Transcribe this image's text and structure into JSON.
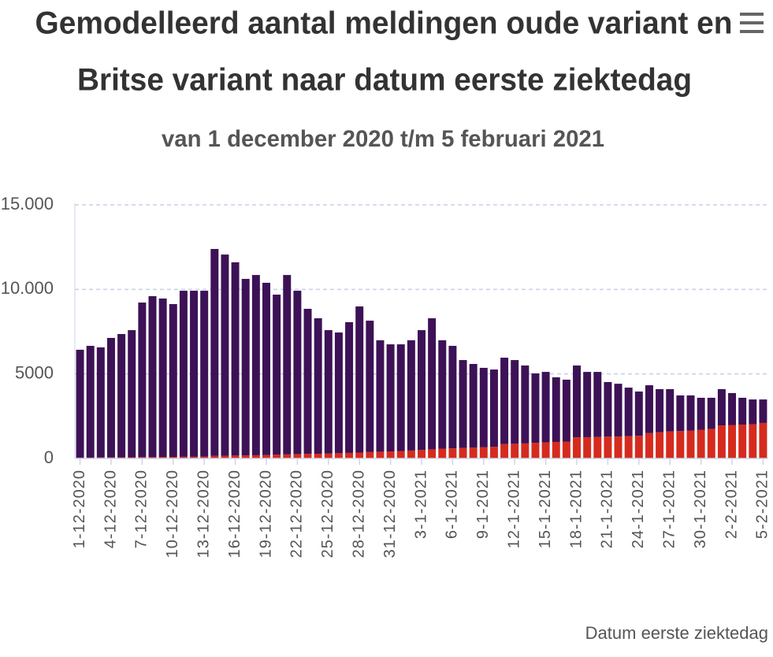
{
  "chart_data": {
    "type": "stacked_bar",
    "title": [
      "Gemodelleerd aantal meldingen oude variant en",
      "Britse variant naar datum eerste ziektedag"
    ],
    "subtitle": "van 1 december 2020 t/m 5 februari 2021",
    "x_label": "Datum eerste ziektedag",
    "categories": [
      "1-12-2020",
      null,
      null,
      "4-12-2020",
      null,
      null,
      "7-12-2020",
      null,
      null,
      "10-12-2020",
      null,
      null,
      "13-12-2020",
      null,
      null,
      "16-12-2020",
      null,
      null,
      "19-12-2020",
      null,
      null,
      "22-12-2020",
      null,
      null,
      "25-12-2020",
      null,
      null,
      "28-12-2020",
      null,
      null,
      "31-12-2020",
      null,
      null,
      "3-1-2021",
      null,
      null,
      "6-1-2021",
      null,
      null,
      "9-1-2021",
      null,
      null,
      "12-1-2021",
      null,
      null,
      "15-1-2021",
      null,
      null,
      "18-1-2021",
      null,
      null,
      "21-1-2021",
      null,
      null,
      "24-1-2021",
      null,
      null,
      "27-1-2021",
      null,
      null,
      "30-1-2021",
      null,
      null,
      "2-2-2021",
      null,
      null,
      "5-2-2021"
    ],
    "series": [
      {
        "color": "#d52b1e",
        "values": [
          50,
          50,
          60,
          60,
          70,
          70,
          80,
          80,
          90,
          90,
          100,
          100,
          110,
          150,
          160,
          170,
          180,
          190,
          200,
          220,
          240,
          260,
          270,
          280,
          290,
          310,
          330,
          350,
          380,
          400,
          420,
          440,
          470,
          500,
          540,
          580,
          600,
          620,
          640,
          660,
          690,
          850,
          870,
          890,
          920,
          950,
          980,
          1000,
          1250,
          1260,
          1270,
          1290,
          1300,
          1320,
          1340,
          1500,
          1550,
          1600,
          1620,
          1650,
          1700,
          1750,
          1950,
          1980,
          2000,
          2020,
          2100
        ]
      },
      {
        "color": "#3d1156",
        "values": [
          6380,
          6610,
          6510,
          7070,
          7290,
          7520,
          9140,
          9520,
          9370,
          9040,
          9820,
          9820,
          9810,
          12240,
          11900,
          11430,
          10440,
          10660,
          10190,
          9470,
          10610,
          9660,
          8580,
          8010,
          7300,
          7140,
          7730,
          8640,
          7770,
          6590,
          6330,
          6310,
          6520,
          7090,
          7750,
          6410,
          6060,
          5200,
          4950,
          4700,
          4570,
          5110,
          4950,
          4610,
          4110,
          4170,
          3820,
          3660,
          4250,
          3860,
          3850,
          3230,
          3120,
          2870,
          2620,
          2830,
          2550,
          2500,
          2110,
          2080,
          1890,
          1840,
          2150,
          1890,
          1590,
          1470,
          1390
        ]
      }
    ],
    "ylim": [
      0,
      15000
    ],
    "yticks": [
      0,
      5000,
      {
        "value": 10000,
        "label": "10.000"
      },
      {
        "value": 15000,
        "label": "15.000"
      }
    ],
    "grid": true
  }
}
